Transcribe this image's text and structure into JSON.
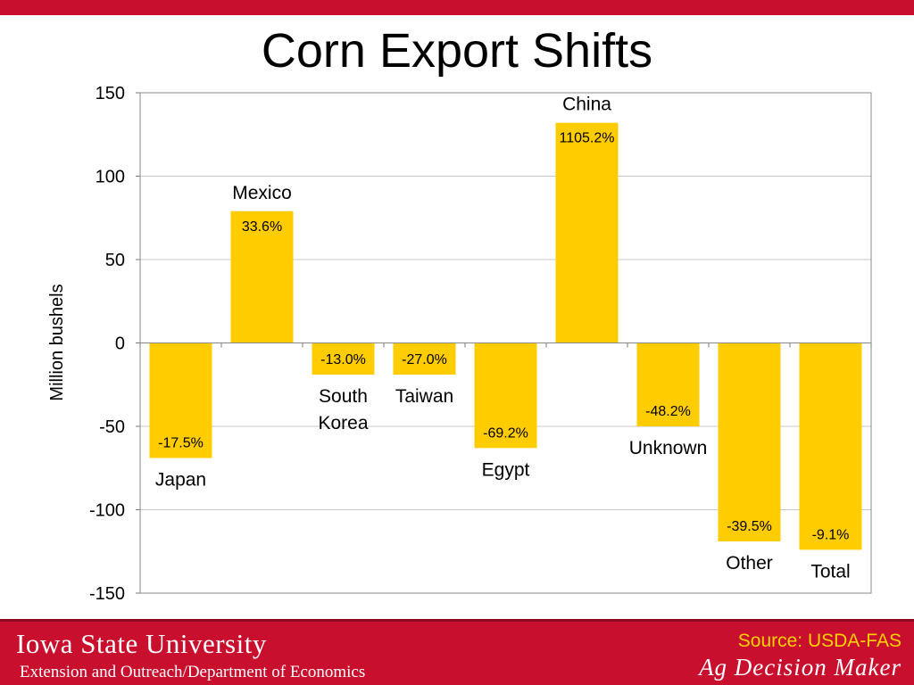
{
  "title": "Corn Export Shifts",
  "chart_data": {
    "type": "bar",
    "title": "Corn Export Shifts",
    "ylabel": "Million bushels",
    "xlabel": "",
    "ylim": [
      -150,
      150
    ],
    "yticks": [
      150,
      100,
      50,
      0,
      -50,
      -100,
      -150
    ],
    "grid": true,
    "bar_color": "#ffcc00",
    "categories": [
      "Japan",
      "Mexico",
      "South Korea",
      "Taiwan",
      "Egypt",
      "China",
      "Unknown",
      "Other",
      "Total"
    ],
    "values": [
      -69,
      79,
      -19,
      -19,
      -63,
      132,
      -50,
      -119,
      -124
    ],
    "data_labels": [
      "-17.5%",
      "33.6%",
      "-13.0%",
      "-27.0%",
      "-69.2%",
      "1105.2%",
      "-48.2%",
      "-39.5%",
      "-9.1%"
    ]
  },
  "footer": {
    "university": "Iowa State University",
    "department": "Extension and Outreach/Department of Economics",
    "source": "Source: USDA-FAS",
    "brand": "Ag Decision Maker"
  },
  "colors": {
    "brand_red": "#c8102e",
    "bar": "#ffcc00",
    "source_text": "#ffd000"
  }
}
